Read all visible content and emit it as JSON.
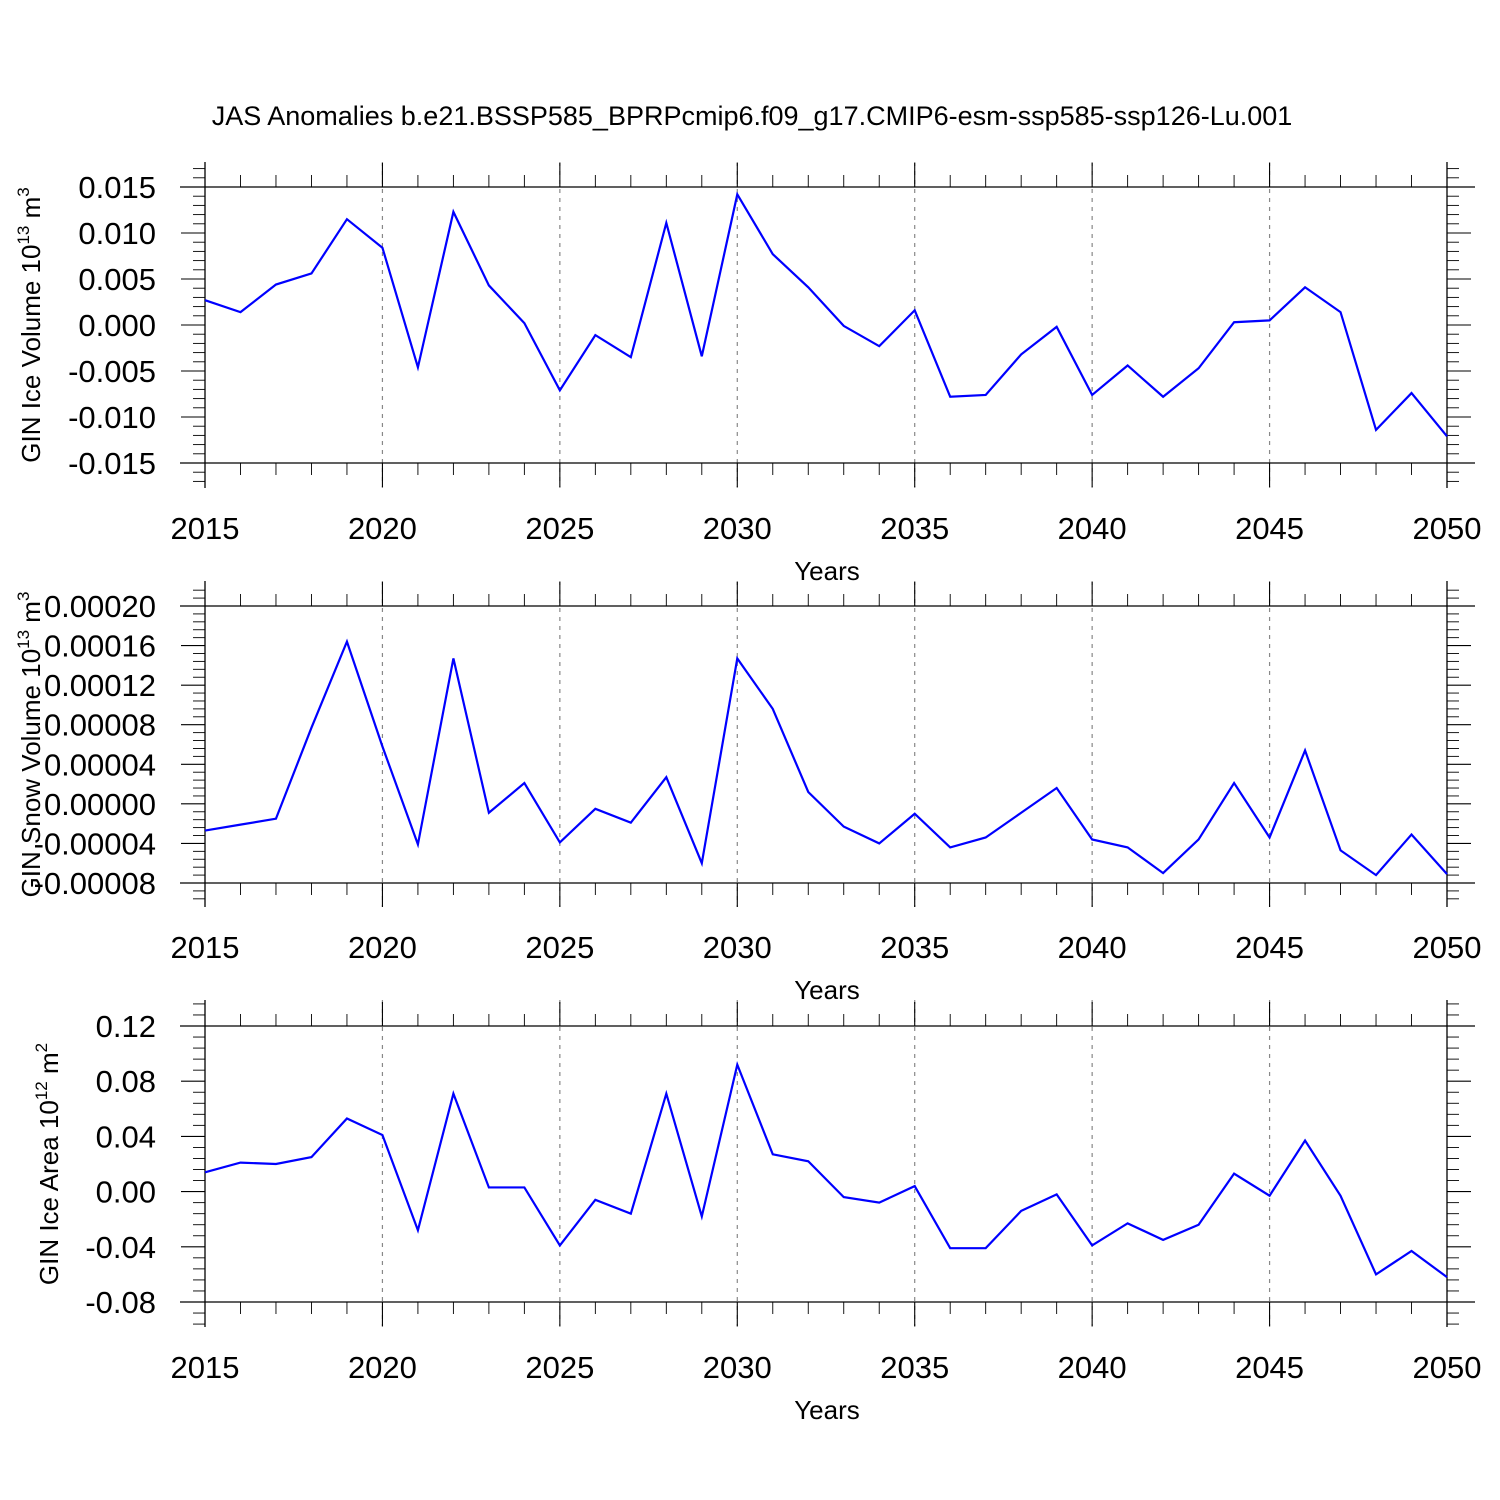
{
  "title": "JAS Anomalies b.e21.BSSP585_BPRPcmip6.f09_g17.CMIP6-esm-ssp585-ssp126-Lu.001",
  "colors": {
    "line": "#0000ff",
    "grid": "#888888",
    "axis": "#000000"
  },
  "chart_data": [
    {
      "type": "line",
      "title": "JAS Anomalies b.e21.BSSP585_BPRPcmip6.f09_g17.CMIP6-esm-ssp585-ssp126-Lu.001",
      "ylabel": "GIN Ice Volume 10",
      "ylabel_exp": "13",
      "ylabel_unit": "m",
      "ylabel_unit_exp": "3",
      "xlabel": "Years",
      "xlim": [
        2015,
        2050
      ],
      "ylim": [
        -0.015,
        0.015
      ],
      "x_ticks": [
        2015,
        2020,
        2025,
        2030,
        2035,
        2040,
        2045,
        2050
      ],
      "x_tick_labels": [
        "2015",
        "2020",
        "2025",
        "2030",
        "2035",
        "2040",
        "2045",
        "2050"
      ],
      "y_ticks": [
        -0.015,
        -0.01,
        -0.005,
        0.0,
        0.005,
        0.01,
        0.015
      ],
      "y_tick_labels": [
        "-0.015",
        "-0.010",
        "-0.005",
        "0.000",
        "0.005",
        "0.010",
        "0.015"
      ],
      "grid": "vertical dashed at major x ticks",
      "series": [
        {
          "name": "GIN Ice Volume",
          "x": [
            2015,
            2016,
            2017,
            2018,
            2019,
            2020,
            2021,
            2022,
            2023,
            2024,
            2025,
            2026,
            2027,
            2028,
            2029,
            2030,
            2031,
            2032,
            2033,
            2034,
            2035,
            2036,
            2037,
            2038,
            2039,
            2040,
            2041,
            2042,
            2043,
            2044,
            2045,
            2046,
            2047,
            2048,
            2049,
            2050
          ],
          "values": [
            0.0027,
            0.0014,
            0.0044,
            0.0056,
            0.0115,
            0.0084,
            -0.0046,
            0.0123,
            0.0043,
            0.0002,
            -0.0071,
            -0.0011,
            -0.0035,
            0.0111,
            -0.0034,
            0.0142,
            0.0077,
            0.0041,
            -0.0001,
            -0.0023,
            0.0016,
            -0.0078,
            -0.0076,
            -0.0032,
            -0.0002,
            -0.0076,
            -0.0044,
            -0.0078,
            -0.0047,
            0.0003,
            0.0005,
            0.0041,
            0.0014,
            -0.0114,
            -0.0074,
            -0.0121
          ]
        }
      ]
    },
    {
      "type": "line",
      "ylabel": "GIN Snow Volume 10",
      "ylabel_exp": "13",
      "ylabel_unit": "m",
      "ylabel_unit_exp": "3",
      "xlabel": "Years",
      "xlim": [
        2015,
        2050
      ],
      "ylim": [
        -8e-05,
        0.0002
      ],
      "x_ticks": [
        2015,
        2020,
        2025,
        2030,
        2035,
        2040,
        2045,
        2050
      ],
      "x_tick_labels": [
        "2015",
        "2020",
        "2025",
        "2030",
        "2035",
        "2040",
        "2045",
        "2050"
      ],
      "y_ticks": [
        -8e-05,
        -4e-05,
        0.0,
        4e-05,
        8e-05,
        0.00012,
        0.00016,
        0.0002
      ],
      "y_tick_labels": [
        "-0.00008",
        "-0.00004",
        "0.00000",
        "0.00004",
        "0.00008",
        "0.00012",
        "0.00016",
        "0.00020"
      ],
      "grid": "vertical dashed at major x ticks",
      "series": [
        {
          "name": "GIN Snow Volume",
          "x": [
            2015,
            2016,
            2017,
            2018,
            2019,
            2020,
            2021,
            2022,
            2023,
            2024,
            2025,
            2026,
            2027,
            2028,
            2029,
            2030,
            2031,
            2032,
            2033,
            2034,
            2035,
            2036,
            2037,
            2038,
            2039,
            2040,
            2041,
            2042,
            2043,
            2044,
            2045,
            2046,
            2047,
            2048,
            2049,
            2050
          ],
          "values": [
            -2.7e-05,
            -2.1e-05,
            -1.5e-05,
            7.7e-05,
            0.000164,
            5.8e-05,
            -4.1e-05,
            0.000147,
            -9e-06,
            2.1e-05,
            -3.9e-05,
            -5e-06,
            -1.9e-05,
            2.7e-05,
            -6e-05,
            0.000147,
            9.6e-05,
            1.2e-05,
            -2.3e-05,
            -4e-05,
            -1e-05,
            -4.4e-05,
            -3.4e-05,
            -9e-06,
            1.6e-05,
            -3.6e-05,
            -4.4e-05,
            -7e-05,
            -3.6e-05,
            2.1e-05,
            -3.4e-05,
            5.4e-05,
            -4.7e-05,
            -7.2e-05,
            -3.1e-05,
            -7.1e-05
          ]
        }
      ]
    },
    {
      "type": "line",
      "ylabel": "GIN Ice Area 10",
      "ylabel_exp": "12",
      "ylabel_unit": "m",
      "ylabel_unit_exp": "2",
      "xlabel": "Years",
      "xlim": [
        2015,
        2050
      ],
      "ylim": [
        -0.09,
        0.12
      ],
      "x_ticks": [
        2015,
        2020,
        2025,
        2030,
        2035,
        2040,
        2045,
        2050
      ],
      "x_tick_labels": [
        "2015",
        "2020",
        "2025",
        "2030",
        "2035",
        "2040",
        "2045",
        "2050"
      ],
      "y_ticks": [
        -0.08,
        -0.04,
        0.0,
        0.04,
        0.08,
        0.12
      ],
      "y_tick_labels": [
        "-0.08",
        "-0.04",
        "0.00",
        "0.04",
        "0.08",
        "0.12"
      ],
      "grid": "vertical dashed at major x ticks",
      "series": [
        {
          "name": "GIN Ice Area",
          "x": [
            2015,
            2016,
            2017,
            2018,
            2019,
            2020,
            2021,
            2022,
            2023,
            2024,
            2025,
            2026,
            2027,
            2028,
            2029,
            2030,
            2031,
            2032,
            2033,
            2034,
            2035,
            2036,
            2037,
            2038,
            2039,
            2040,
            2041,
            2042,
            2043,
            2044,
            2045,
            2046,
            2047,
            2048,
            2049,
            2050
          ],
          "values": [
            0.014,
            0.021,
            0.02,
            0.025,
            0.053,
            0.041,
            -0.028,
            0.071,
            0.003,
            0.003,
            -0.039,
            -0.006,
            -0.016,
            0.071,
            -0.018,
            0.092,
            0.027,
            0.022,
            -0.004,
            -0.008,
            0.004,
            -0.041,
            -0.041,
            -0.014,
            -0.002,
            -0.039,
            -0.023,
            -0.035,
            -0.024,
            0.013,
            -0.003,
            0.037,
            -0.003,
            -0.06,
            -0.043,
            -0.062
          ]
        }
      ]
    }
  ]
}
